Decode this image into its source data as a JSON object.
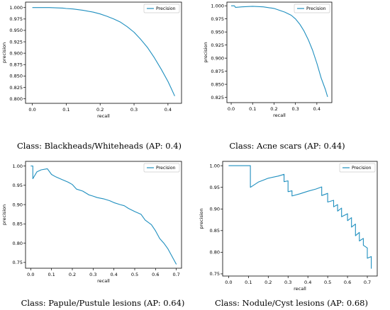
{
  "chart_data": [
    {
      "type": "line",
      "xlabel": "recall",
      "ylabel": "precision",
      "legend": [
        "Precision"
      ],
      "legend_position": "top-right",
      "grid": false,
      "xlim": [
        -0.02,
        0.44
      ],
      "ylim": [
        0.79,
        1.012
      ],
      "xticks": [
        0.0,
        0.1,
        0.2,
        0.3,
        0.4
      ],
      "xtick_labels": [
        "0.0",
        "0.1",
        "0.2",
        "0.3",
        "0.4"
      ],
      "yticks": [
        0.8,
        0.825,
        0.85,
        0.875,
        0.9,
        0.925,
        0.95,
        0.975,
        1.0
      ],
      "ytick_labels": [
        "0.800",
        "0.825",
        "0.850",
        "0.875",
        "0.900",
        "0.925",
        "0.950",
        "0.975",
        "1.000"
      ],
      "caption": "Class: Blackheads/Whiteheads (AP: 0.4)",
      "series": [
        {
          "name": "Precision",
          "x": [
            0.0,
            0.05,
            0.09,
            0.1,
            0.12,
            0.15,
            0.18,
            0.2,
            0.22,
            0.24,
            0.26,
            0.28,
            0.3,
            0.32,
            0.34,
            0.36,
            0.38,
            0.4,
            0.41,
            0.42
          ],
          "y": [
            1.0,
            1.0,
            0.999,
            0.998,
            0.997,
            0.994,
            0.99,
            0.986,
            0.981,
            0.975,
            0.968,
            0.958,
            0.946,
            0.93,
            0.912,
            0.89,
            0.865,
            0.838,
            0.822,
            0.806
          ]
        }
      ]
    },
    {
      "type": "line",
      "xlabel": "recall",
      "ylabel": "precision",
      "legend": [
        "Precision"
      ],
      "legend_position": "top-right",
      "grid": false,
      "xlim": [
        -0.02,
        0.47
      ],
      "ylim": [
        0.815,
        1.007
      ],
      "xticks": [
        0.0,
        0.1,
        0.2,
        0.3,
        0.4
      ],
      "xtick_labels": [
        "0.0",
        "0.1",
        "0.2",
        "0.3",
        "0.4"
      ],
      "yticks": [
        0.825,
        0.85,
        0.875,
        0.9,
        0.925,
        0.95,
        0.975,
        1.0
      ],
      "ytick_labels": [
        "0.825",
        "0.850",
        "0.875",
        "0.900",
        "0.925",
        "0.950",
        "0.975",
        "1.000"
      ],
      "caption": "Class: Acne scars (AP: 0.44)",
      "series": [
        {
          "name": "Precision",
          "x": [
            0.0,
            0.015,
            0.02,
            0.05,
            0.1,
            0.15,
            0.2,
            0.25,
            0.28,
            0.3,
            0.32,
            0.34,
            0.36,
            0.38,
            0.4,
            0.42,
            0.44,
            0.45
          ],
          "y": [
            1.0,
            1.0,
            0.997,
            0.998,
            0.999,
            0.998,
            0.995,
            0.988,
            0.982,
            0.975,
            0.965,
            0.952,
            0.935,
            0.915,
            0.89,
            0.862,
            0.84,
            0.826
          ]
        }
      ]
    },
    {
      "type": "line",
      "xlabel": "recall",
      "ylabel": "precision",
      "legend": [
        "Precision"
      ],
      "legend_position": "top-right",
      "grid": false,
      "xlim": [
        -0.025,
        0.725
      ],
      "ylim": [
        0.735,
        1.012
      ],
      "xticks": [
        0.0,
        0.1,
        0.2,
        0.3,
        0.4,
        0.5,
        0.6,
        0.7
      ],
      "xtick_labels": [
        "0.0",
        "0.1",
        "0.2",
        "0.3",
        "0.4",
        "0.5",
        "0.6",
        "0.7"
      ],
      "yticks": [
        0.75,
        0.8,
        0.85,
        0.9,
        0.95,
        1.0
      ],
      "ytick_labels": [
        "0.75",
        "0.80",
        "0.85",
        "0.90",
        "0.95",
        "1.00"
      ],
      "caption": "Class: Papule/Pustule lesions (AP: 0.64)",
      "series": [
        {
          "name": "Precision",
          "x": [
            0.0,
            0.01,
            0.01,
            0.03,
            0.05,
            0.08,
            0.1,
            0.12,
            0.15,
            0.18,
            0.2,
            0.22,
            0.25,
            0.28,
            0.3,
            0.32,
            0.35,
            0.38,
            0.4,
            0.43,
            0.45,
            0.47,
            0.5,
            0.53,
            0.55,
            0.58,
            0.6,
            0.62,
            0.64,
            0.66,
            0.68,
            0.7
          ],
          "y": [
            1.0,
            1.0,
            0.967,
            0.985,
            0.99,
            0.993,
            0.978,
            0.972,
            0.965,
            0.958,
            0.952,
            0.94,
            0.935,
            0.925,
            0.922,
            0.918,
            0.915,
            0.91,
            0.905,
            0.9,
            0.897,
            0.89,
            0.882,
            0.875,
            0.86,
            0.848,
            0.832,
            0.812,
            0.8,
            0.785,
            0.765,
            0.745
          ]
        }
      ]
    },
    {
      "type": "line",
      "xlabel": "recall",
      "ylabel": "precision",
      "legend": [
        "Precision"
      ],
      "legend_position": "top-right",
      "grid": false,
      "xlim": [
        -0.03,
        0.75
      ],
      "ylim": [
        0.745,
        1.01
      ],
      "xticks": [
        0.0,
        0.1,
        0.2,
        0.3,
        0.4,
        0.5,
        0.6,
        0.7
      ],
      "xtick_labels": [
        "0.0",
        "0.1",
        "0.2",
        "0.3",
        "0.4",
        "0.5",
        "0.6",
        "0.7"
      ],
      "yticks": [
        0.75,
        0.8,
        0.85,
        0.9,
        0.95,
        1.0
      ],
      "ytick_labels": [
        "0.75",
        "0.80",
        "0.85",
        "0.90",
        "0.95",
        "1.00"
      ],
      "caption": "Class: Nodule/Cyst lesions (AP: 0.68)",
      "series": [
        {
          "name": "Precision",
          "x": [
            0.0,
            0.11,
            0.11,
            0.15,
            0.2,
            0.25,
            0.28,
            0.28,
            0.3,
            0.3,
            0.32,
            0.32,
            0.36,
            0.4,
            0.44,
            0.47,
            0.47,
            0.5,
            0.5,
            0.53,
            0.53,
            0.55,
            0.55,
            0.57,
            0.57,
            0.6,
            0.6,
            0.62,
            0.62,
            0.64,
            0.64,
            0.66,
            0.66,
            0.68,
            0.68,
            0.7,
            0.7,
            0.72,
            0.72
          ],
          "y": [
            1.0,
            1.0,
            0.95,
            0.962,
            0.971,
            0.976,
            0.98,
            0.963,
            0.965,
            0.94,
            0.942,
            0.93,
            0.935,
            0.941,
            0.946,
            0.951,
            0.931,
            0.936,
            0.916,
            0.92,
            0.905,
            0.91,
            0.895,
            0.902,
            0.882,
            0.889,
            0.873,
            0.88,
            0.858,
            0.865,
            0.838,
            0.846,
            0.826,
            0.832,
            0.816,
            0.81,
            0.786,
            0.79,
            0.762
          ]
        }
      ]
    }
  ],
  "colors": {
    "line": "#1f8fbf",
    "axis": "#000000",
    "legend_border": "#cccccc"
  }
}
